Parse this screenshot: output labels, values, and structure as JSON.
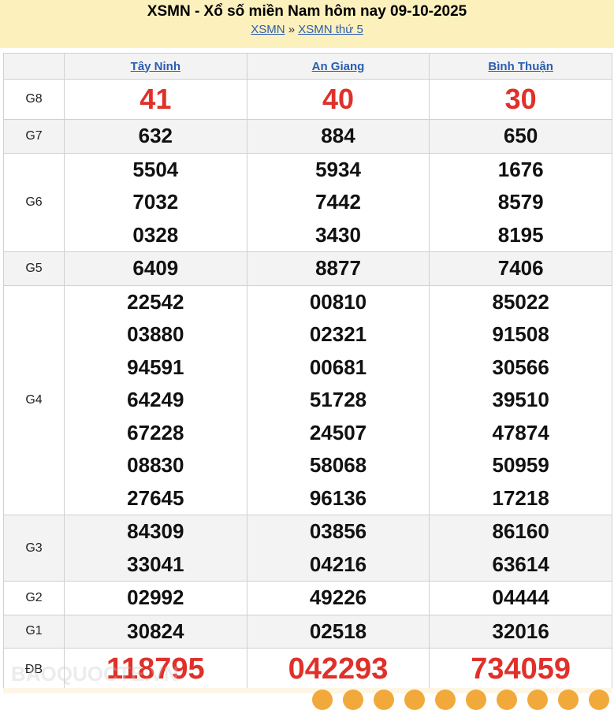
{
  "header": {
    "title": "XSMN - Xổ số miền Nam hôm nay 09-10-2025",
    "breadcrumb": [
      "XSMN",
      "XSMN thứ 5"
    ],
    "separator": "»"
  },
  "provinces": [
    "Tây Ninh",
    "An Giang",
    "Bình Thuận"
  ],
  "prizes": [
    {
      "label": "G8",
      "values": [
        [
          "41"
        ],
        [
          "40"
        ],
        [
          "30"
        ]
      ]
    },
    {
      "label": "G7",
      "values": [
        [
          "632"
        ],
        [
          "884"
        ],
        [
          "650"
        ]
      ]
    },
    {
      "label": "G6",
      "values": [
        [
          "5504",
          "7032",
          "0328"
        ],
        [
          "5934",
          "7442",
          "3430"
        ],
        [
          "1676",
          "8579",
          "8195"
        ]
      ]
    },
    {
      "label": "G5",
      "values": [
        [
          "6409"
        ],
        [
          "8877"
        ],
        [
          "7406"
        ]
      ]
    },
    {
      "label": "G4",
      "values": [
        [
          "22542",
          "03880",
          "94591",
          "64249",
          "67228",
          "08830",
          "27645"
        ],
        [
          "00810",
          "02321",
          "00681",
          "51728",
          "24507",
          "58068",
          "96136"
        ],
        [
          "85022",
          "91508",
          "30566",
          "39510",
          "47874",
          "50959",
          "17218"
        ]
      ]
    },
    {
      "label": "G3",
      "values": [
        [
          "84309",
          "33041"
        ],
        [
          "03856",
          "04216"
        ],
        [
          "86160",
          "63614"
        ]
      ]
    },
    {
      "label": "G2",
      "values": [
        [
          "02992"
        ],
        [
          "49226"
        ],
        [
          "04444"
        ]
      ]
    },
    {
      "label": "G1",
      "values": [
        [
          "30824"
        ],
        [
          "02518"
        ],
        [
          "32016"
        ]
      ]
    },
    {
      "label": "ĐB",
      "values": [
        [
          "118795"
        ],
        [
          "042293"
        ],
        [
          "734059"
        ]
      ]
    }
  ],
  "watermark": "BAOQUOCTE.VN",
  "colors": {
    "header_bg": "#fcf0bd",
    "accent_red": "#e0302a",
    "link": "#2a5db0"
  }
}
